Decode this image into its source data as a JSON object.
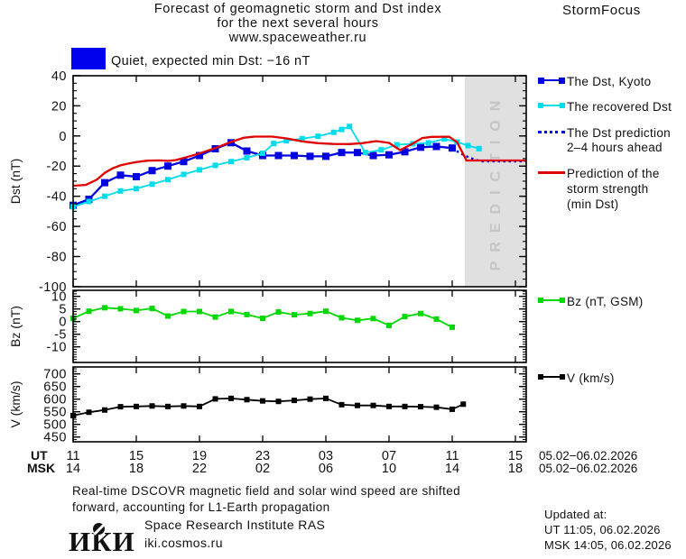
{
  "header": {
    "title_line1": "Forecast of geomagnetic storm and Dst index",
    "title_line2": "for the next several hours",
    "title_line3": "www.spaceweather.ru",
    "app_name": "StormFocus"
  },
  "status": {
    "label": "Quiet, expected min Dst: −16 nT",
    "box_color": "#0000ee"
  },
  "legend": {
    "dst_kyoto": "The Dst, Kyoto",
    "recovered": "The recovered Dst",
    "prediction_line1": "The Dst prediction",
    "prediction_line2": "2–4 hours ahead",
    "storm_line1": "Prediction of the",
    "storm_line2": "storm strength",
    "storm_line3": "(min Dst)",
    "bz": "Bz (nT, GSM)",
    "v": "V (km/s)"
  },
  "chart_data": {
    "type": "line",
    "x_unit": "hours since 11:00 UT 05.02.2026",
    "xaxis": {
      "ticks_t": [
        0,
        4,
        8,
        12,
        16,
        20,
        24,
        28
      ],
      "ut_label": "UT",
      "msk_label": "MSK",
      "ut_ticks": [
        "11",
        "15",
        "19",
        "23",
        "03",
        "07",
        "11",
        "15"
      ],
      "msk_ticks": [
        "14",
        "18",
        "22",
        "02",
        "06",
        "10",
        "14",
        "18"
      ],
      "date_ut": "05.02−06.02.2026",
      "date_msk": "05.02−06.02.2026"
    },
    "panels": [
      {
        "id": "dst",
        "ylabel": "Dst (nT)",
        "ylim": [
          -100,
          40
        ],
        "yticks": [
          40,
          20,
          0,
          -20,
          -40,
          -60,
          -80,
          -100
        ],
        "yminor_step": 5,
        "band": {
          "t_start": 24.8,
          "label": "PREDICTION",
          "fill": "#e0e0e0",
          "text_color": "#c5c5c5"
        },
        "series": [
          {
            "name": "The Dst, Kyoto",
            "color": "#0000e0",
            "line": "solid",
            "width": 2.3,
            "marker": 8,
            "points": [
              [
                0,
                -46
              ],
              [
                1,
                -42
              ],
              [
                2,
                -31
              ],
              [
                3,
                -26
              ],
              [
                4,
                -27
              ],
              [
                5,
                -23
              ],
              [
                6,
                -20
              ],
              [
                7,
                -17
              ],
              [
                8,
                -13
              ],
              [
                9,
                -8.5
              ],
              [
                10,
                -4.5
              ],
              [
                11,
                -10
              ],
              [
                12,
                -13
              ],
              [
                13,
                -13
              ],
              [
                14,
                -13
              ],
              [
                15,
                -13.5
              ],
              [
                16,
                -13.5
              ],
              [
                17,
                -11
              ],
              [
                18,
                -11
              ],
              [
                19,
                -13
              ],
              [
                20,
                -12.5
              ],
              [
                21,
                -10.5
              ],
              [
                22,
                -7.5
              ],
              [
                23,
                -7
              ],
              [
                24,
                -8
              ]
            ]
          },
          {
            "name": "The recovered Dst",
            "color": "#00dcec",
            "line": "solid",
            "width": 1.8,
            "marker": 6,
            "points": [
              [
                0,
                -47
              ],
              [
                1,
                -43.5
              ],
              [
                2,
                -40
              ],
              [
                3,
                -36.5
              ],
              [
                4,
                -35
              ],
              [
                5,
                -32
              ],
              [
                6,
                -29
              ],
              [
                7,
                -25.5
              ],
              [
                8,
                -22.5
              ],
              [
                9,
                -19.5
              ],
              [
                10,
                -17
              ],
              [
                11,
                -14.5
              ],
              [
                12,
                -11.5
              ],
              [
                12.7,
                -5
              ],
              [
                13.5,
                -3.2
              ],
              [
                14.5,
                -1.8
              ],
              [
                15.5,
                -0.2
              ],
              [
                16.5,
                2.4
              ],
              [
                17,
                4.3
              ],
              [
                17.5,
                6.3
              ],
              [
                18.5,
                -11
              ],
              [
                19.5,
                -9.2
              ],
              [
                20.5,
                -5.8
              ],
              [
                21.5,
                -5.2
              ],
              [
                22.5,
                -4.6
              ],
              [
                23.5,
                -2
              ],
              [
                24.3,
                -4
              ],
              [
                25,
                -6.4
              ],
              [
                25.7,
                -8.4
              ]
            ]
          },
          {
            "name": "The Dst prediction 2–4 hours ahead",
            "color": "#0000e0",
            "line": "dotted",
            "width": 2.4,
            "marker": 0,
            "points": [
              [
                24,
                -8
              ],
              [
                24.5,
                -11.5
              ],
              [
                25.1,
                -14.5
              ],
              [
                25.8,
                -16.8
              ],
              [
                28.7,
                -16.8
              ]
            ]
          },
          {
            "name": "Prediction of the storm strength (min Dst)",
            "color": "#e00000",
            "line": "solid",
            "width": 2.3,
            "marker": 0,
            "points": [
              [
                0,
                -33
              ],
              [
                0.8,
                -32.5
              ],
              [
                1.5,
                -29
              ],
              [
                2,
                -24.5
              ],
              [
                2.5,
                -21.5
              ],
              [
                3,
                -19.5
              ],
              [
                3.5,
                -18.3
              ],
              [
                4,
                -17.3
              ],
              [
                4.7,
                -16.4
              ],
              [
                5.5,
                -16.2
              ],
              [
                6,
                -16.6
              ],
              [
                6.5,
                -16
              ],
              [
                7,
                -14.6
              ],
              [
                8,
                -11.6
              ],
              [
                9,
                -8
              ],
              [
                10,
                -4
              ],
              [
                10.8,
                -1.2
              ],
              [
                11.5,
                -0.4
              ],
              [
                12.6,
                -0.4
              ],
              [
                13.5,
                -1.6
              ],
              [
                14.5,
                -3.6
              ],
              [
                15.5,
                -4.8
              ],
              [
                16.5,
                -5.3
              ],
              [
                17.5,
                -5.4
              ],
              [
                18.3,
                -4.8
              ],
              [
                19.2,
                -3.4
              ],
              [
                20,
                -4.6
              ],
              [
                20.7,
                -9.4
              ],
              [
                21.4,
                -5.6
              ],
              [
                22.1,
                -1.4
              ],
              [
                22.7,
                -0.6
              ],
              [
                23.8,
                -0.5
              ],
              [
                24.3,
                -4
              ],
              [
                24.9,
                -16.3
              ],
              [
                28.7,
                -16.3
              ]
            ]
          }
        ]
      },
      {
        "id": "bz",
        "ylabel": "Bz (nT)",
        "ylim": [
          -16.2,
          12.4
        ],
        "yticks": [
          10,
          5,
          0,
          -5,
          -10
        ],
        "yminor_step": 1,
        "series": [
          {
            "name": "Bz (nT, GSM)",
            "color": "#00d800",
            "line": "solid",
            "width": 1.8,
            "marker": 6,
            "points": [
              [
                0,
                1.3
              ],
              [
                1,
                4.1
              ],
              [
                2,
                5.5
              ],
              [
                3,
                5.1
              ],
              [
                4,
                4.4
              ],
              [
                5,
                5.2
              ],
              [
                6,
                2.2
              ],
              [
                7,
                4.0
              ],
              [
                8,
                4.0
              ],
              [
                9,
                1.8
              ],
              [
                10,
                4.0
              ],
              [
                11,
                2.8
              ],
              [
                12,
                1.3
              ],
              [
                13,
                3.8
              ],
              [
                14,
                2.7
              ],
              [
                15,
                3.2
              ],
              [
                16,
                4.1
              ],
              [
                17,
                1.5
              ],
              [
                18,
                0.5
              ],
              [
                19,
                1.2
              ],
              [
                20,
                -1.5
              ],
              [
                21,
                2.0
              ],
              [
                22,
                3.2
              ],
              [
                23,
                1.0
              ],
              [
                24,
                -2.2
              ]
            ]
          }
        ]
      },
      {
        "id": "v",
        "ylabel": "V (km/s)",
        "ylim": [
          431,
          727
        ],
        "yticks": [
          700,
          650,
          600,
          550,
          500,
          450
        ],
        "yminor_step": 10,
        "series": [
          {
            "name": "V (km/s)",
            "color": "#000000",
            "line": "solid",
            "width": 1.8,
            "marker": 6,
            "points": [
              [
                0,
                535
              ],
              [
                1,
                548
              ],
              [
                2,
                557
              ],
              [
                3,
                570
              ],
              [
                4,
                571
              ],
              [
                5,
                573
              ],
              [
                6,
                571
              ],
              [
                7,
                573
              ],
              [
                8,
                571
              ],
              [
                9,
                601
              ],
              [
                10,
                603
              ],
              [
                11,
                598
              ],
              [
                12,
                593
              ],
              [
                13,
                591
              ],
              [
                14,
                595
              ],
              [
                15,
                600
              ],
              [
                16,
                603
              ],
              [
                17,
                578
              ],
              [
                18,
                575
              ],
              [
                19,
                575
              ],
              [
                20,
                571
              ],
              [
                21,
                571
              ],
              [
                22,
                570
              ],
              [
                23,
                568
              ],
              [
                24,
                560
              ],
              [
                24.7,
                580
              ]
            ]
          }
        ]
      }
    ]
  },
  "footer": {
    "note_line1": "Real-time DSCOVR magnetic field and solar wind speed are shifted",
    "note_line2": "forward, accounting for L1-Earth propagation",
    "logo_text": "ИКИ",
    "institute": "Space Research Institute RAS",
    "institute_url": "iki.cosmos.ru",
    "updated_label": "Updated at:",
    "updated_ut": "UT   11:05, 06.02.2026",
    "updated_msk": "MSK 14:05, 06.02.2026"
  }
}
